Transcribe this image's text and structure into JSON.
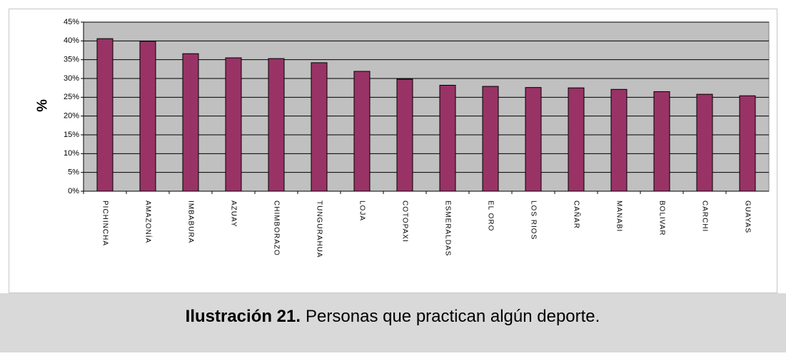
{
  "chart_data": {
    "type": "bar",
    "y_label": "%",
    "categories": [
      "PICHINCHA",
      "AMAZONÍA",
      "IMBABURA",
      "AZUAY",
      "CHIMBORAZO",
      "TUNGURAHUA",
      "LOJA",
      "COTOPAXI",
      "ESMERALDAS",
      "EL ORO",
      "LOS RIOS",
      "CAÑAR",
      "MANABI",
      "BOLIVAR",
      "CARCHI",
      "GUAYAS"
    ],
    "values": [
      40.6,
      39.9,
      36.6,
      35.5,
      35.3,
      34.2,
      31.9,
      29.8,
      28.2,
      27.9,
      27.6,
      27.5,
      27.1,
      26.5,
      25.8,
      25.4
    ],
    "color": "#993366",
    "ylim": [
      0,
      45
    ],
    "yticks": [
      {
        "value": 0,
        "label": "0%"
      },
      {
        "value": 5,
        "label": "5%"
      },
      {
        "value": 10,
        "label": "10%"
      },
      {
        "value": 15,
        "label": "15%"
      },
      {
        "value": 20,
        "label": "20%"
      },
      {
        "value": 25,
        "label": "25%"
      },
      {
        "value": 30,
        "label": "30%"
      },
      {
        "value": 35,
        "label": "35%"
      },
      {
        "value": 40,
        "label": "40%"
      },
      {
        "value": 45,
        "label": "45%"
      }
    ],
    "grid": true
  },
  "caption": {
    "label": "Ilustración 21.",
    "text": "Personas que practican algún deporte."
  }
}
